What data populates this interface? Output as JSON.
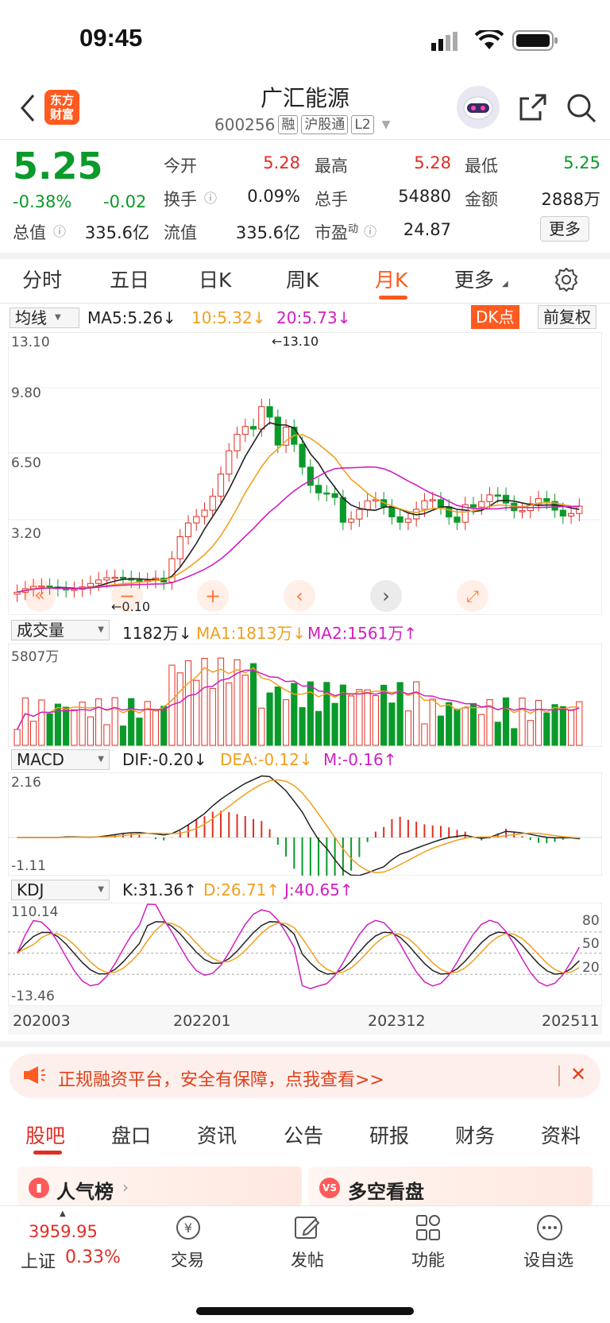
{
  "status": {
    "time": "09:45"
  },
  "header": {
    "title": "广汇能源",
    "code": "600256",
    "tags": [
      "融",
      "沪股通",
      "L2"
    ],
    "logo_text": [
      "东方",
      "财富"
    ]
  },
  "quote": {
    "price": "5.25",
    "change_pct": "-0.38%",
    "change": "-0.02",
    "total_value_label": "总值",
    "total_value": "335.6亿",
    "open_label": "今开",
    "open": "5.28",
    "high_label": "最高",
    "high": "5.28",
    "low_label": "最低",
    "low": "5.25",
    "turnover_label": "换手",
    "turnover": "0.09%",
    "volume_label": "总手",
    "volume": "54880",
    "amount_label": "金额",
    "amount": "2888万",
    "float_label": "流值",
    "float_value": "335.6亿",
    "pe_label": "市盈",
    "pe_sup": "动",
    "pe": "24.87",
    "more": "更多"
  },
  "tabs": {
    "items": [
      "分时",
      "五日",
      "日K",
      "周K",
      "月K",
      "更多"
    ],
    "active": "月K"
  },
  "main_chart": {
    "selector": "均线",
    "ma5": "MA5:5.26↓",
    "ma10": "10:5.32↓",
    "ma20": "20:5.73↓",
    "dk_button": "DK点",
    "adjust_button": "前复权",
    "y_labels": [
      "13.10",
      "9.80",
      "6.50",
      "3.20"
    ],
    "max_note": "←13.10",
    "min_note": "←0.10",
    "colors": {
      "ma5": "#222222",
      "ma10": "#f0a020",
      "ma20": "#d020c0",
      "up": "#e02e24",
      "down": "#0a9a2a"
    }
  },
  "volume_chart": {
    "selector": "成交量",
    "value": "1182万↓",
    "ma1": "MA1:1813万↓",
    "ma2": "MA2:1561万↑",
    "y_label": "5807万"
  },
  "macd_chart": {
    "selector": "MACD",
    "dif": "DIF:-0.20↓",
    "dea": "DEA:-0.12↓",
    "m": "M:-0.16↑",
    "y_top": "2.16",
    "y_bottom": "-1.11"
  },
  "kdj_chart": {
    "selector": "KDJ",
    "k": "K:31.36↑",
    "d": "D:26.71↑",
    "j": "J:40.65↑",
    "y_top": "110.14",
    "y_bottom": "-13.46",
    "levels": [
      "80",
      "50",
      "20"
    ],
    "x_labels": [
      "202003",
      "202201",
      "202312",
      "202511"
    ]
  },
  "banner": {
    "text": "正规融资平台，安全有保障，点我查看>>"
  },
  "bottom_tabs": {
    "items": [
      "股吧",
      "盘口",
      "资讯",
      "公告",
      "研报",
      "财务",
      "资料"
    ],
    "active": "股吧"
  },
  "cards": {
    "left": "人气榜",
    "right": "多空看盘"
  },
  "nav": {
    "index_value": "3959.95",
    "index_name": "上证",
    "index_change": "0.33%",
    "items": [
      "交易",
      "发帖",
      "功能",
      "设自选"
    ]
  }
}
